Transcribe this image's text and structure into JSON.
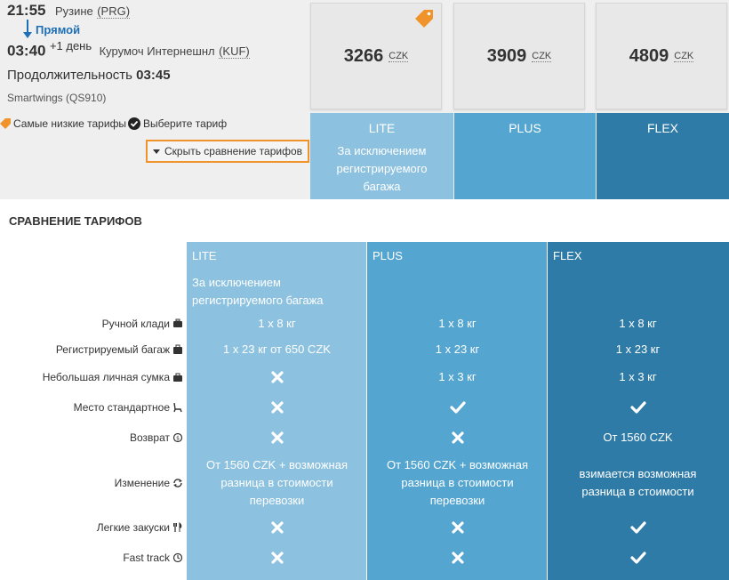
{
  "flight": {
    "dep_time": "21:55",
    "dep_airport": "Рузине",
    "dep_code": "(PRG)",
    "direct_label": "Прямой",
    "arr_time": "03:40",
    "plus_day": "+1 день",
    "arr_airport": "Курумоч Интернешнл",
    "arr_code": "(KUF)",
    "duration_label": "Продолжительность",
    "duration_value": "03:45",
    "airline": "Smartwings (QS910)"
  },
  "prices": [
    {
      "amount": "3266",
      "currency": "CZK",
      "cheapest": true
    },
    {
      "amount": "3909",
      "currency": "CZK",
      "cheapest": false
    },
    {
      "amount": "4809",
      "currency": "CZK",
      "cheapest": false
    }
  ],
  "legend": {
    "lowest": "Самые низкие тарифы",
    "choose": "Выберите тариф"
  },
  "hide_button": "Скрыть сравнение тарифов",
  "fares": [
    {
      "name": "LITE",
      "desc": "За исключением регистрируемого багажа",
      "color": "#8cc1df"
    },
    {
      "name": "PLUS",
      "desc": "",
      "color": "#55a5d1"
    },
    {
      "name": "FLEX",
      "desc": "",
      "color": "#2f7ba7"
    }
  ],
  "comparison": {
    "title": "СРАВНЕНИЕ ТАРИФОВ",
    "rows": [
      {
        "label": "Ручной клади",
        "icon": "suitcase-icon",
        "cells": [
          {
            "t": "text",
            "v": "1 x 8 кг"
          },
          {
            "t": "text",
            "v": "1 x 8 кг"
          },
          {
            "t": "text",
            "v": "1 x 8 кг"
          }
        ]
      },
      {
        "label": "Регистрируемый багаж",
        "icon": "briefcase-icon",
        "cells": [
          {
            "t": "text",
            "v": "1 x 23 кг от 650 CZK"
          },
          {
            "t": "text",
            "v": "1 x 23 кг"
          },
          {
            "t": "text",
            "v": "1 x 23 кг"
          }
        ]
      },
      {
        "label": "Небольшая личная сумка",
        "icon": "bag-icon",
        "cells": [
          {
            "t": "no",
            "v": ""
          },
          {
            "t": "text",
            "v": "1 x 3 кг"
          },
          {
            "t": "text",
            "v": "1 x 3 кг"
          }
        ]
      },
      {
        "label": "Место стандартное",
        "icon": "seat-icon",
        "cells": [
          {
            "t": "no",
            "v": ""
          },
          {
            "t": "yes",
            "v": ""
          },
          {
            "t": "yes",
            "v": ""
          }
        ]
      },
      {
        "label": "Возврат",
        "icon": "refund-icon",
        "cells": [
          {
            "t": "no",
            "v": ""
          },
          {
            "t": "no",
            "v": ""
          },
          {
            "t": "text",
            "v": "От 1560 CZK"
          }
        ]
      },
      {
        "label": "Изменение",
        "icon": "change-icon",
        "cells": [
          {
            "t": "text",
            "v": "От 1560 CZK + возможная разница в стоимости перевозки"
          },
          {
            "t": "text",
            "v": "От 1560 CZK + возможная разница в стоимости перевозки"
          },
          {
            "t": "text",
            "v": "взимается возможная разница в стоимости"
          }
        ]
      },
      {
        "label": "Легкие закуски",
        "icon": "cutlery-icon",
        "cells": [
          {
            "t": "no",
            "v": ""
          },
          {
            "t": "no",
            "v": ""
          },
          {
            "t": "yes",
            "v": ""
          }
        ]
      },
      {
        "label": "Fast track",
        "icon": "clock-icon",
        "cells": [
          {
            "t": "no",
            "v": ""
          },
          {
            "t": "no",
            "v": ""
          },
          {
            "t": "yes",
            "v": ""
          }
        ]
      }
    ]
  }
}
